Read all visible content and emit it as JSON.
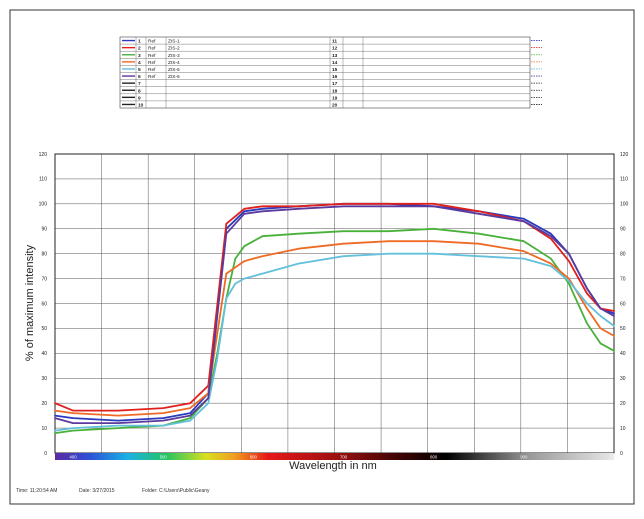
{
  "legend": {
    "rows": [
      {
        "num": "1",
        "type": "Ref",
        "name": "ZIS-1",
        "color": "#2a3bbd"
      },
      {
        "num": "2",
        "type": "Ref",
        "name": "ZIS-2",
        "color": "#e0201c"
      },
      {
        "num": "3",
        "type": "Ref",
        "name": "ZIS-3",
        "color": "#49b13a"
      },
      {
        "num": "4",
        "type": "Ref",
        "name": "ZIS-4",
        "color": "#ee6a25"
      },
      {
        "num": "5",
        "type": "Ref",
        "name": "ZIS-5",
        "color": "#62c0dc"
      },
      {
        "num": "6",
        "type": "Ref",
        "name": "ZIS-6",
        "color": "#5a3a9c"
      },
      {
        "num": "7",
        "type": "",
        "name": "",
        "color": "#222222"
      },
      {
        "num": "8",
        "type": "",
        "name": "",
        "color": "#222222"
      },
      {
        "num": "9",
        "type": "",
        "name": "",
        "color": "#222222"
      },
      {
        "num": "10",
        "type": "",
        "name": "",
        "color": "#222222"
      }
    ],
    "rows_right": [
      "11",
      "12",
      "13",
      "14",
      "15",
      "16",
      "17",
      "18",
      "19",
      "20"
    ]
  },
  "footer": {
    "time": "Time: 11:20:54 AM",
    "date": "Date: 3/27/2015",
    "folder": "Folder: C:\\Users\\Public\\Geany"
  },
  "chart_data": {
    "type": "line",
    "xlabel": "Wavelength in nm",
    "ylabel": "% of maximum intensity",
    "xlim": [
      380,
      1000
    ],
    "ylim": [
      0,
      120
    ],
    "yticks": [
      0,
      10,
      20,
      30,
      40,
      50,
      60,
      70,
      80,
      90,
      100,
      110,
      120
    ],
    "yticks_right": [
      0,
      10,
      20,
      30,
      40,
      50,
      60,
      70,
      80,
      90,
      100,
      110,
      120
    ],
    "xticks": [
      "400",
      "500",
      "600",
      "700",
      "800",
      "900",
      "1000"
    ],
    "grid": true,
    "legend_position": "top",
    "series": [
      {
        "name": "ZIS-1",
        "color": "#2a3bbd",
        "x": [
          380,
          400,
          450,
          500,
          530,
          550,
          570,
          590,
          610,
          650,
          700,
          750,
          800,
          850,
          900,
          930,
          950,
          970,
          985,
          1000
        ],
        "y": [
          15,
          14,
          13,
          14,
          16,
          24,
          90,
          97,
          98,
          99,
          100,
          100,
          99,
          97,
          94,
          88,
          80,
          66,
          58,
          56
        ]
      },
      {
        "name": "ZIS-2",
        "color": "#e0201c",
        "x": [
          380,
          400,
          450,
          500,
          530,
          550,
          570,
          590,
          610,
          650,
          700,
          750,
          800,
          850,
          900,
          930,
          950,
          970,
          985,
          1000
        ],
        "y": [
          20,
          17,
          17,
          18,
          20,
          27,
          92,
          98,
          99,
          99,
          100,
          100,
          100,
          97,
          93,
          86,
          77,
          64,
          58,
          57
        ]
      },
      {
        "name": "ZIS-3",
        "color": "#49b13a",
        "x": [
          380,
          400,
          450,
          500,
          530,
          550,
          560,
          570,
          580,
          590,
          610,
          650,
          700,
          750,
          800,
          850,
          900,
          930,
          950,
          970,
          985,
          1000
        ],
        "y": [
          8,
          9,
          10,
          11,
          14,
          22,
          40,
          62,
          78,
          83,
          87,
          88,
          89,
          89,
          90,
          88,
          85,
          78,
          68,
          52,
          44,
          41
        ]
      },
      {
        "name": "ZIS-4",
        "color": "#ee6a25",
        "x": [
          380,
          400,
          450,
          500,
          530,
          550,
          570,
          590,
          610,
          650,
          700,
          750,
          800,
          850,
          900,
          930,
          950,
          970,
          985,
          1000
        ],
        "y": [
          17,
          16,
          15,
          16,
          18,
          24,
          72,
          77,
          79,
          82,
          84,
          85,
          85,
          84,
          81,
          76,
          70,
          58,
          50,
          47
        ]
      },
      {
        "name": "ZIS-5",
        "color": "#62c0dc",
        "x": [
          380,
          400,
          450,
          500,
          530,
          550,
          560,
          570,
          580,
          590,
          610,
          650,
          700,
          750,
          800,
          850,
          900,
          930,
          950,
          970,
          985,
          1000
        ],
        "y": [
          9,
          10,
          11,
          11,
          13,
          20,
          38,
          62,
          68,
          70,
          72,
          76,
          79,
          80,
          80,
          79,
          78,
          75,
          69,
          60,
          55,
          51
        ]
      },
      {
        "name": "ZIS-6",
        "color": "#5a3a9c",
        "x": [
          380,
          400,
          450,
          500,
          530,
          550,
          570,
          590,
          610,
          650,
          700,
          750,
          800,
          850,
          900,
          930,
          950,
          970,
          985,
          1000
        ],
        "y": [
          14,
          12,
          12,
          13,
          15,
          22,
          88,
          96,
          97,
          98,
          99,
          99,
          99,
          96,
          93,
          87,
          80,
          66,
          58,
          55
        ]
      }
    ]
  }
}
